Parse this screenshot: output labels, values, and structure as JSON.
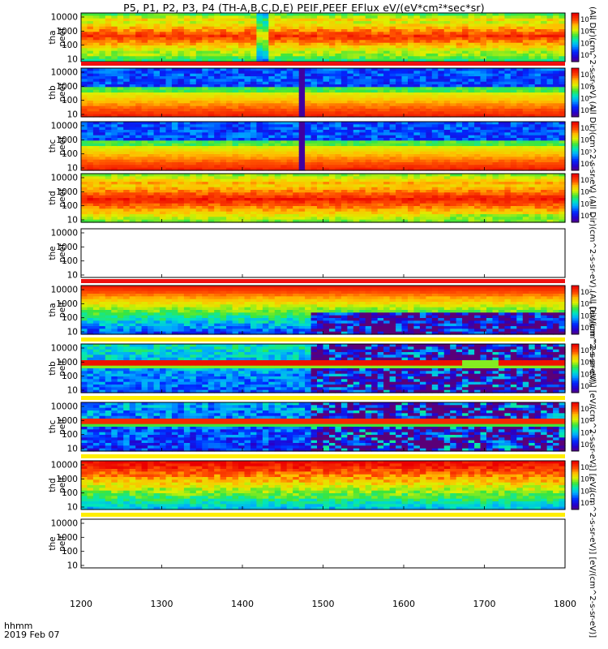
{
  "chart_data": {
    "type": "heatmap",
    "title": "P5, P1, P2, P3, P4 (TH-A,B,C,D,E) PEIF,PEEF EFlux eV/(eV*cm²*sec*sr)",
    "x_axis": {
      "ticks": [
        "1200",
        "1300",
        "1400",
        "1500",
        "1600",
        "1700",
        "1800"
      ],
      "xlim": [
        1200,
        1800
      ],
      "label_line1": "hhmm",
      "label_line2": "2019 Feb 07"
    },
    "y_axis": {
      "scale": "log",
      "ticks": [
        "10",
        "100",
        "1000",
        "10000"
      ]
    },
    "colormap": "rainbow",
    "colorbar_top": {
      "label": "(All Dir)(cm^2-s-sr-eV) (All Dir)(cm^2-s-sr-eV) (All Dir)(cm^2-s-sr-eV) (All Dir)(cm^2-s-sr-eV)",
      "ticks": [
        "10⁴",
        "10⁵",
        "10⁶",
        "10⁷"
      ]
    },
    "colorbar_bottom": {
      "label": "[eV/(cm^2-s-sr-eV)] [eV/(cm^2-s-sr-eV)] [eV/(cm^2-s-sr-eV)] [eV/(cm^2-s-sr-eV)]",
      "ticks": [
        "10⁴",
        "10⁵",
        "10⁶",
        "10⁷"
      ]
    },
    "panels": [
      {
        "label1": "tha",
        "label2": "peef",
        "ytop": 10000,
        "ybottom": 10,
        "pattern": "e_hot",
        "has_data": true,
        "colorbar": "top"
      },
      {
        "label1": "thb",
        "label2": "peef",
        "ytop": 10000,
        "ybottom": 10,
        "pattern": "e_cold",
        "has_data": true,
        "colorbar": "top"
      },
      {
        "label1": "thc",
        "label2": "peef",
        "ytop": 10000,
        "ybottom": 10,
        "pattern": "e_cold",
        "has_data": true,
        "colorbar": "top"
      },
      {
        "label1": "thd",
        "label2": "peef",
        "ytop": 10000,
        "ybottom": 10,
        "pattern": "e_hot2",
        "has_data": true,
        "colorbar": "top"
      },
      {
        "label1": "the",
        "label2": "peef",
        "ytop": 10000,
        "ybottom": 10,
        "pattern": "empty",
        "has_data": false,
        "colorbar": "none"
      },
      {
        "label1": "tha",
        "label2": "peif",
        "ytop": 10000,
        "ybottom": 10,
        "pattern": "i_hot",
        "has_data": true,
        "colorbar": "bottom"
      },
      {
        "label1": "thb",
        "label2": "peif",
        "ytop": 10000,
        "ybottom": 10,
        "pattern": "i_band",
        "has_data": true,
        "colorbar": "bottom"
      },
      {
        "label1": "thc",
        "label2": "peif",
        "ytop": 10000,
        "ybottom": 10,
        "pattern": "i_band2",
        "has_data": true,
        "colorbar": "bottom"
      },
      {
        "label1": "thd",
        "label2": "peif",
        "ytop": 10000,
        "ybottom": 10,
        "pattern": "i_hot2",
        "has_data": true,
        "colorbar": "bottom"
      },
      {
        "label1": "the",
        "label2": "peif",
        "ytop": 10000,
        "ybottom": 10,
        "pattern": "empty",
        "has_data": false,
        "colorbar": "none"
      }
    ]
  }
}
